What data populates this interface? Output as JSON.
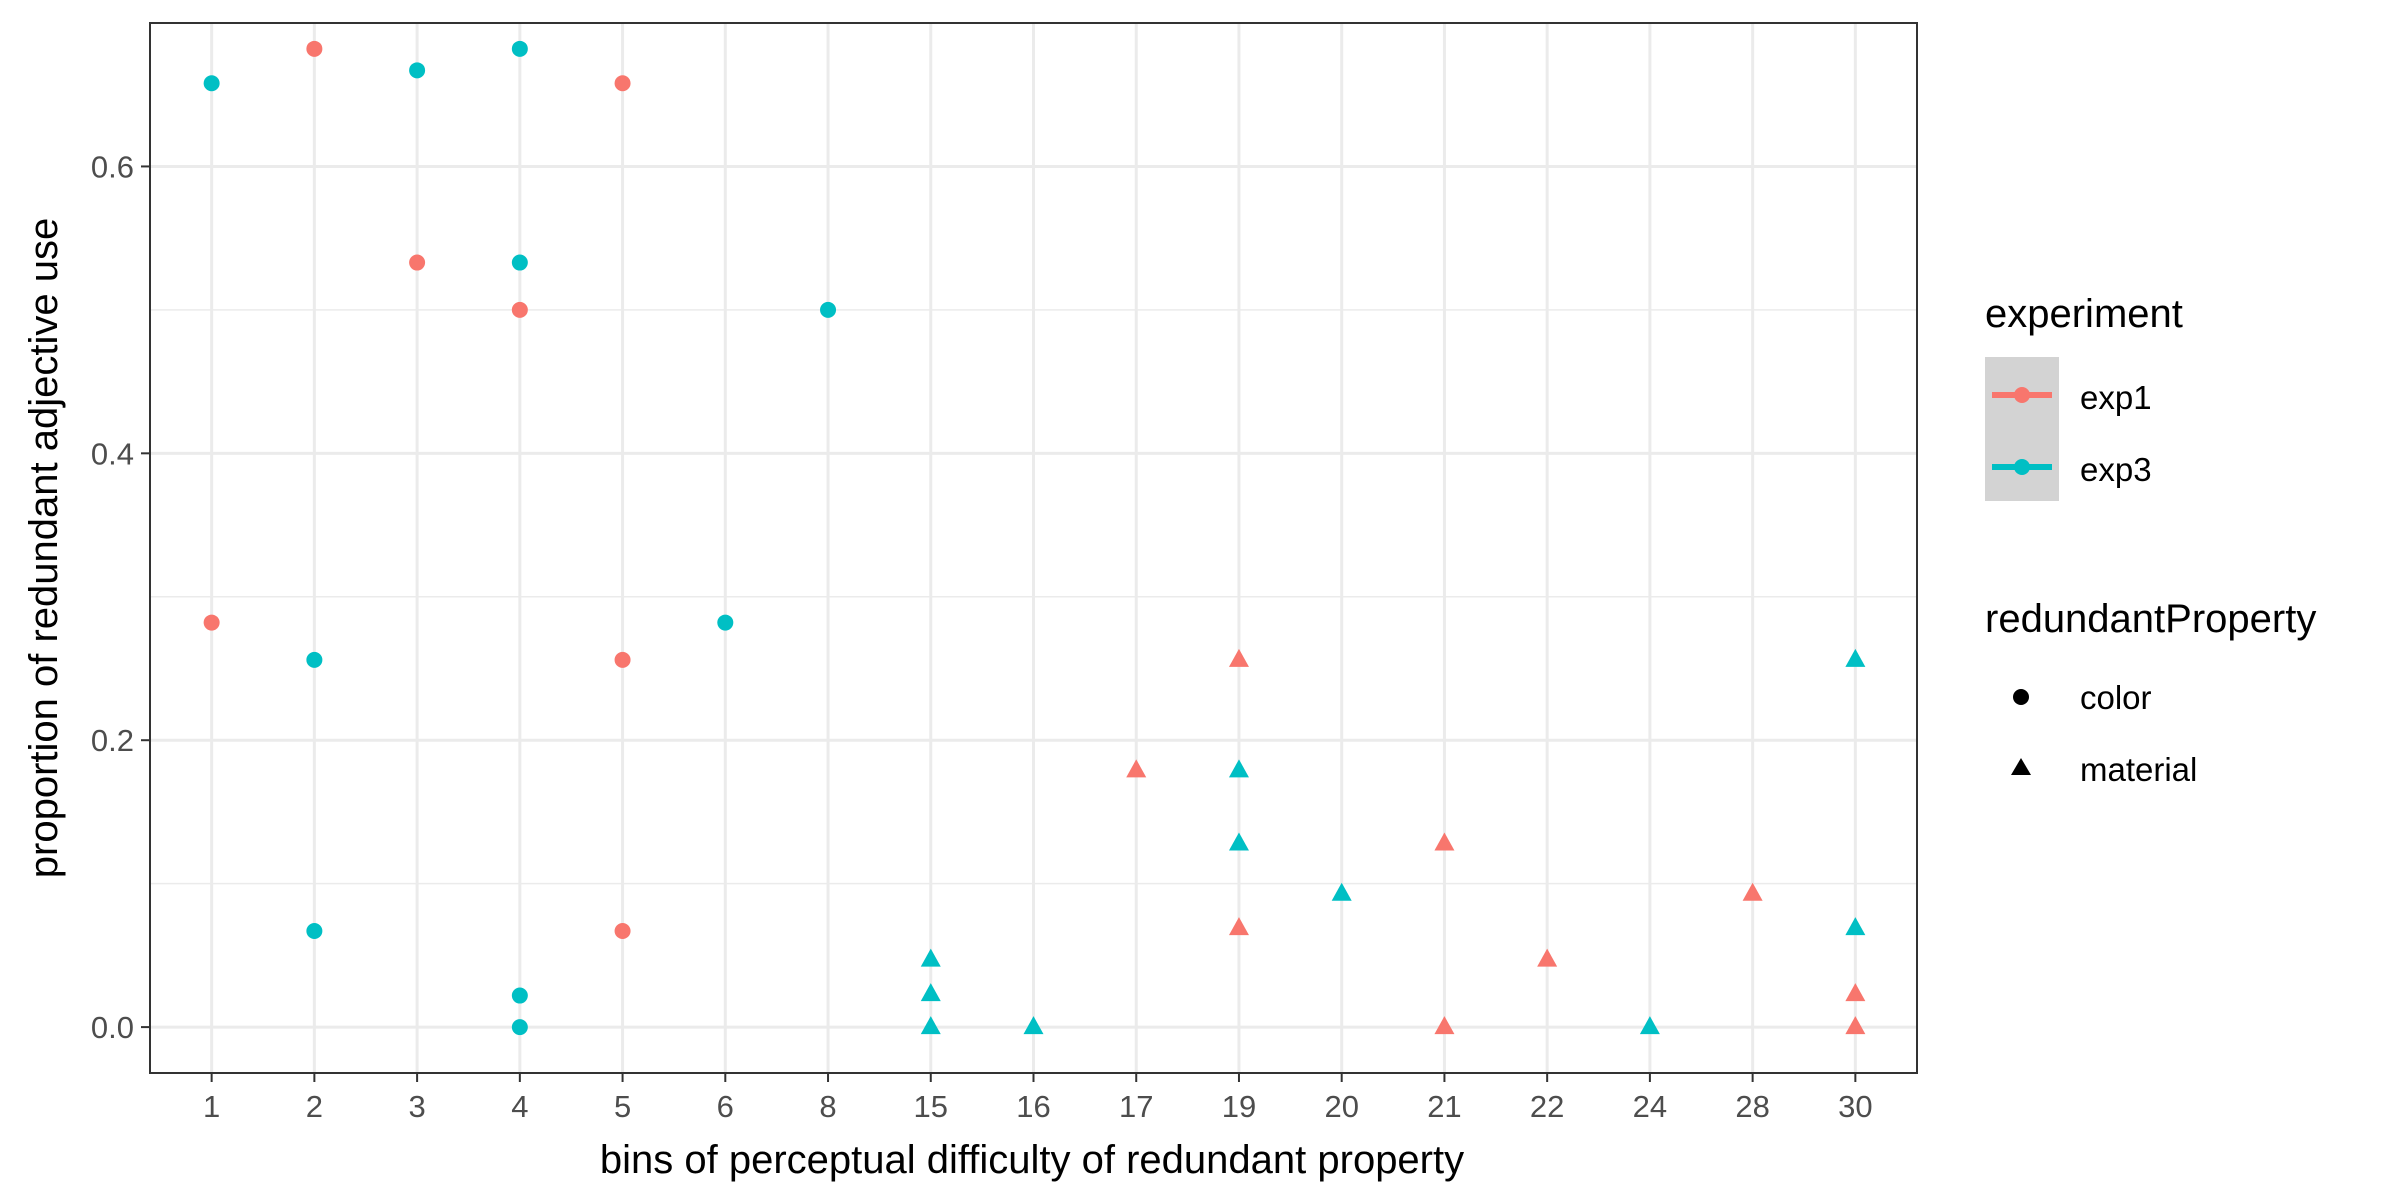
{
  "chart_data": {
    "type": "scatter",
    "xlabel": "bins of perceptual difficulty of redundant property",
    "ylabel": "proportion of redundant adjective use",
    "x_categories": [
      "1",
      "2",
      "3",
      "4",
      "5",
      "6",
      "8",
      "15",
      "16",
      "17",
      "19",
      "20",
      "21",
      "22",
      "24",
      "28",
      "30"
    ],
    "y_ticks": [
      "0.0",
      "0.2",
      "0.4",
      "0.6"
    ],
    "ylim": [
      -0.032,
      0.7
    ],
    "grid": true,
    "legend_position": "right",
    "legends": {
      "experiment": {
        "title": "experiment",
        "items": [
          {
            "label": "exp1",
            "color": "#F8766D"
          },
          {
            "label": "exp3",
            "color": "#00BFC4"
          }
        ]
      },
      "redundantProperty": {
        "title": "redundantProperty",
        "items": [
          {
            "label": "color",
            "shape": "circle"
          },
          {
            "label": "material",
            "shape": "triangle"
          }
        ]
      }
    },
    "series": [
      {
        "experiment": "exp1",
        "property": "color",
        "points": [
          {
            "x": "1",
            "y": 0.282
          },
          {
            "x": "2",
            "y": 0.682
          },
          {
            "x": "3",
            "y": 0.533
          },
          {
            "x": "4",
            "y": 0.5
          },
          {
            "x": "5",
            "y": 0.658
          },
          {
            "x": "5",
            "y": 0.256
          },
          {
            "x": "5",
            "y": 0.067
          }
        ]
      },
      {
        "experiment": "exp3",
        "property": "color",
        "points": [
          {
            "x": "1",
            "y": 0.658
          },
          {
            "x": "2",
            "y": 0.256
          },
          {
            "x": "2",
            "y": 0.067
          },
          {
            "x": "3",
            "y": 0.667
          },
          {
            "x": "4",
            "y": 0.682
          },
          {
            "x": "4",
            "y": 0.533
          },
          {
            "x": "4",
            "y": 0.022
          },
          {
            "x": "4",
            "y": 0.0
          },
          {
            "x": "6",
            "y": 0.282
          },
          {
            "x": "8",
            "y": 0.5
          }
        ]
      },
      {
        "experiment": "exp1",
        "property": "material",
        "points": [
          {
            "x": "17",
            "y": 0.179
          },
          {
            "x": "19",
            "y": 0.256
          },
          {
            "x": "19",
            "y": 0.069
          },
          {
            "x": "21",
            "y": 0.128
          },
          {
            "x": "21",
            "y": 0.0
          },
          {
            "x": "22",
            "y": 0.047
          },
          {
            "x": "28",
            "y": 0.093
          },
          {
            "x": "30",
            "y": 0.023
          },
          {
            "x": "30",
            "y": 0.0
          }
        ]
      },
      {
        "experiment": "exp3",
        "property": "material",
        "points": [
          {
            "x": "15",
            "y": 0.047
          },
          {
            "x": "15",
            "y": 0.023
          },
          {
            "x": "15",
            "y": 0.0
          },
          {
            "x": "16",
            "y": 0.0
          },
          {
            "x": "19",
            "y": 0.179
          },
          {
            "x": "19",
            "y": 0.128
          },
          {
            "x": "20",
            "y": 0.093
          },
          {
            "x": "24",
            "y": 0.0
          },
          {
            "x": "30",
            "y": 0.256
          },
          {
            "x": "30",
            "y": 0.069
          }
        ]
      }
    ]
  }
}
